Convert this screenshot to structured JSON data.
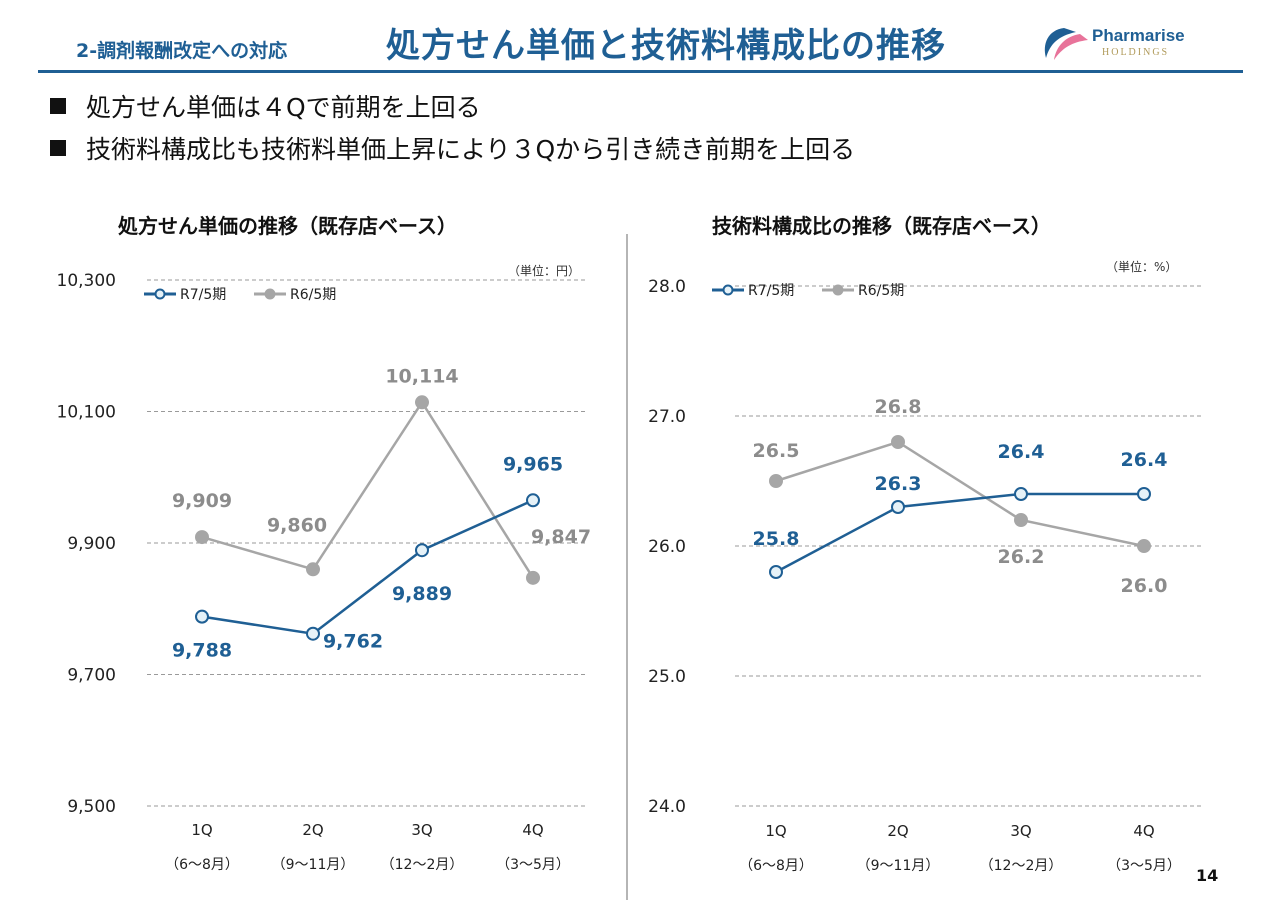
{
  "header": {
    "section": "2-調剤報酬改定への対応",
    "title": "処方せん単価と技術料構成比の推移",
    "logo_name": "Pharmarise",
    "logo_sub": "HOLDINGS"
  },
  "bullets": [
    "処方せん単価は４Qで前期を上回る",
    "技術料構成比も技術料単価上昇により３Qから引き続き前期を上回る"
  ],
  "colors": {
    "current": "#1f5f94",
    "previous": "#a6a6a6",
    "accent": "#1f5f94"
  },
  "chart_data": [
    {
      "type": "line",
      "title": "処方せん単価の推移（既存店ベース）",
      "unit_note": "（単位：円）",
      "categories": [
        "1Q",
        "2Q",
        "3Q",
        "4Q"
      ],
      "sublabels": [
        "（6～8月）",
        "（9～11月）",
        "（12～2月）",
        "（3～5月）"
      ],
      "yticks": [
        "10,300",
        "10,100",
        "9,900",
        "9,700",
        "9,500"
      ],
      "ylim": [
        9500,
        10300
      ],
      "grid": true,
      "legend": "top-left",
      "series": [
        {
          "name": "R7/5期",
          "values": [
            9788,
            9762,
            9889,
            9965
          ],
          "labels": [
            "9,788",
            "9,762",
            "9,889",
            "9,965"
          ]
        },
        {
          "name": "R6/5期",
          "values": [
            9909,
            9860,
            10114,
            9847
          ],
          "labels": [
            "9,909",
            "9,860",
            "10,114",
            "9,847"
          ]
        }
      ]
    },
    {
      "type": "line",
      "title": "技術料構成比の推移（既存店ベース）",
      "unit_note": "（単位：%）",
      "categories": [
        "1Q",
        "2Q",
        "3Q",
        "4Q"
      ],
      "sublabels": [
        "（6～8月）",
        "（9～11月）",
        "（12～2月）",
        "（3～5月）"
      ],
      "yticks": [
        "28.0",
        "27.0",
        "26.0",
        "25.0",
        "24.0"
      ],
      "ylim": [
        24.0,
        28.0
      ],
      "grid": true,
      "legend": "top-left",
      "series": [
        {
          "name": "R7/5期",
          "values": [
            25.8,
            26.3,
            26.4,
            26.4
          ],
          "labels": [
            "25.8",
            "26.3",
            "26.4",
            "26.4"
          ]
        },
        {
          "name": "R6/5期",
          "values": [
            26.5,
            26.8,
            26.2,
            26.0
          ],
          "labels": [
            "26.5",
            "26.8",
            "26.2",
            "26.0"
          ]
        }
      ]
    }
  ],
  "page_number": "14"
}
